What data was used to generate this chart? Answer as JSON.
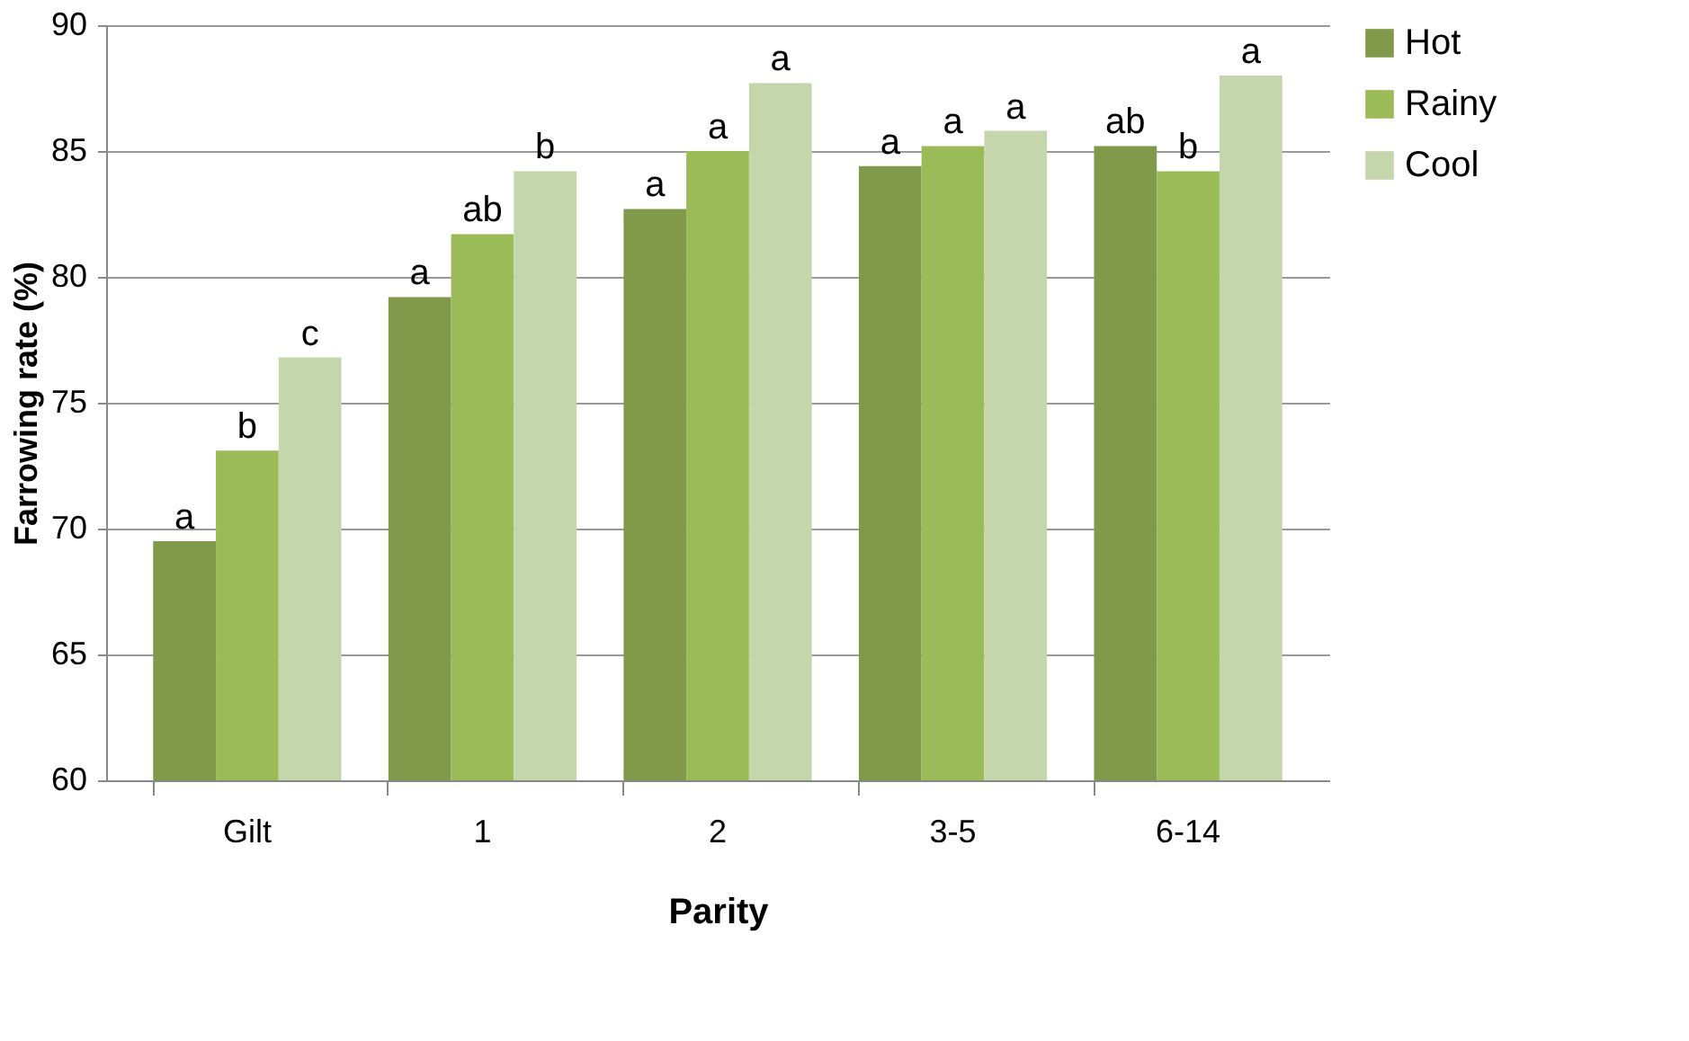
{
  "chart_data": {
    "type": "bar",
    "xlabel": "Parity",
    "ylabel": "Farrowing rate (%)",
    "categories": [
      "Gilt",
      "1",
      "2",
      "3-5",
      "6-14"
    ],
    "series": [
      {
        "name": "Hot",
        "color": "#80994a",
        "values": [
          69.5,
          79.2,
          82.7,
          84.4,
          85.2
        ],
        "value_labels": [
          "a",
          "a",
          "a",
          "a",
          "ab"
        ]
      },
      {
        "name": "Rainy",
        "color": "#9bbb59",
        "values": [
          73.1,
          81.7,
          85.0,
          85.2,
          84.2
        ],
        "value_labels": [
          "b",
          "ab",
          "a",
          "a",
          "b"
        ]
      },
      {
        "name": "Cool",
        "color": "#c6d6ac",
        "values": [
          76.8,
          84.2,
          87.7,
          85.8,
          88.0
        ],
        "value_labels": [
          "c",
          "b",
          "a",
          "a",
          "a"
        ]
      }
    ],
    "ylim": [
      60,
      90
    ],
    "yticks": [
      60,
      65,
      70,
      75,
      80,
      85,
      90
    ],
    "grid": "y",
    "legend": "right"
  }
}
